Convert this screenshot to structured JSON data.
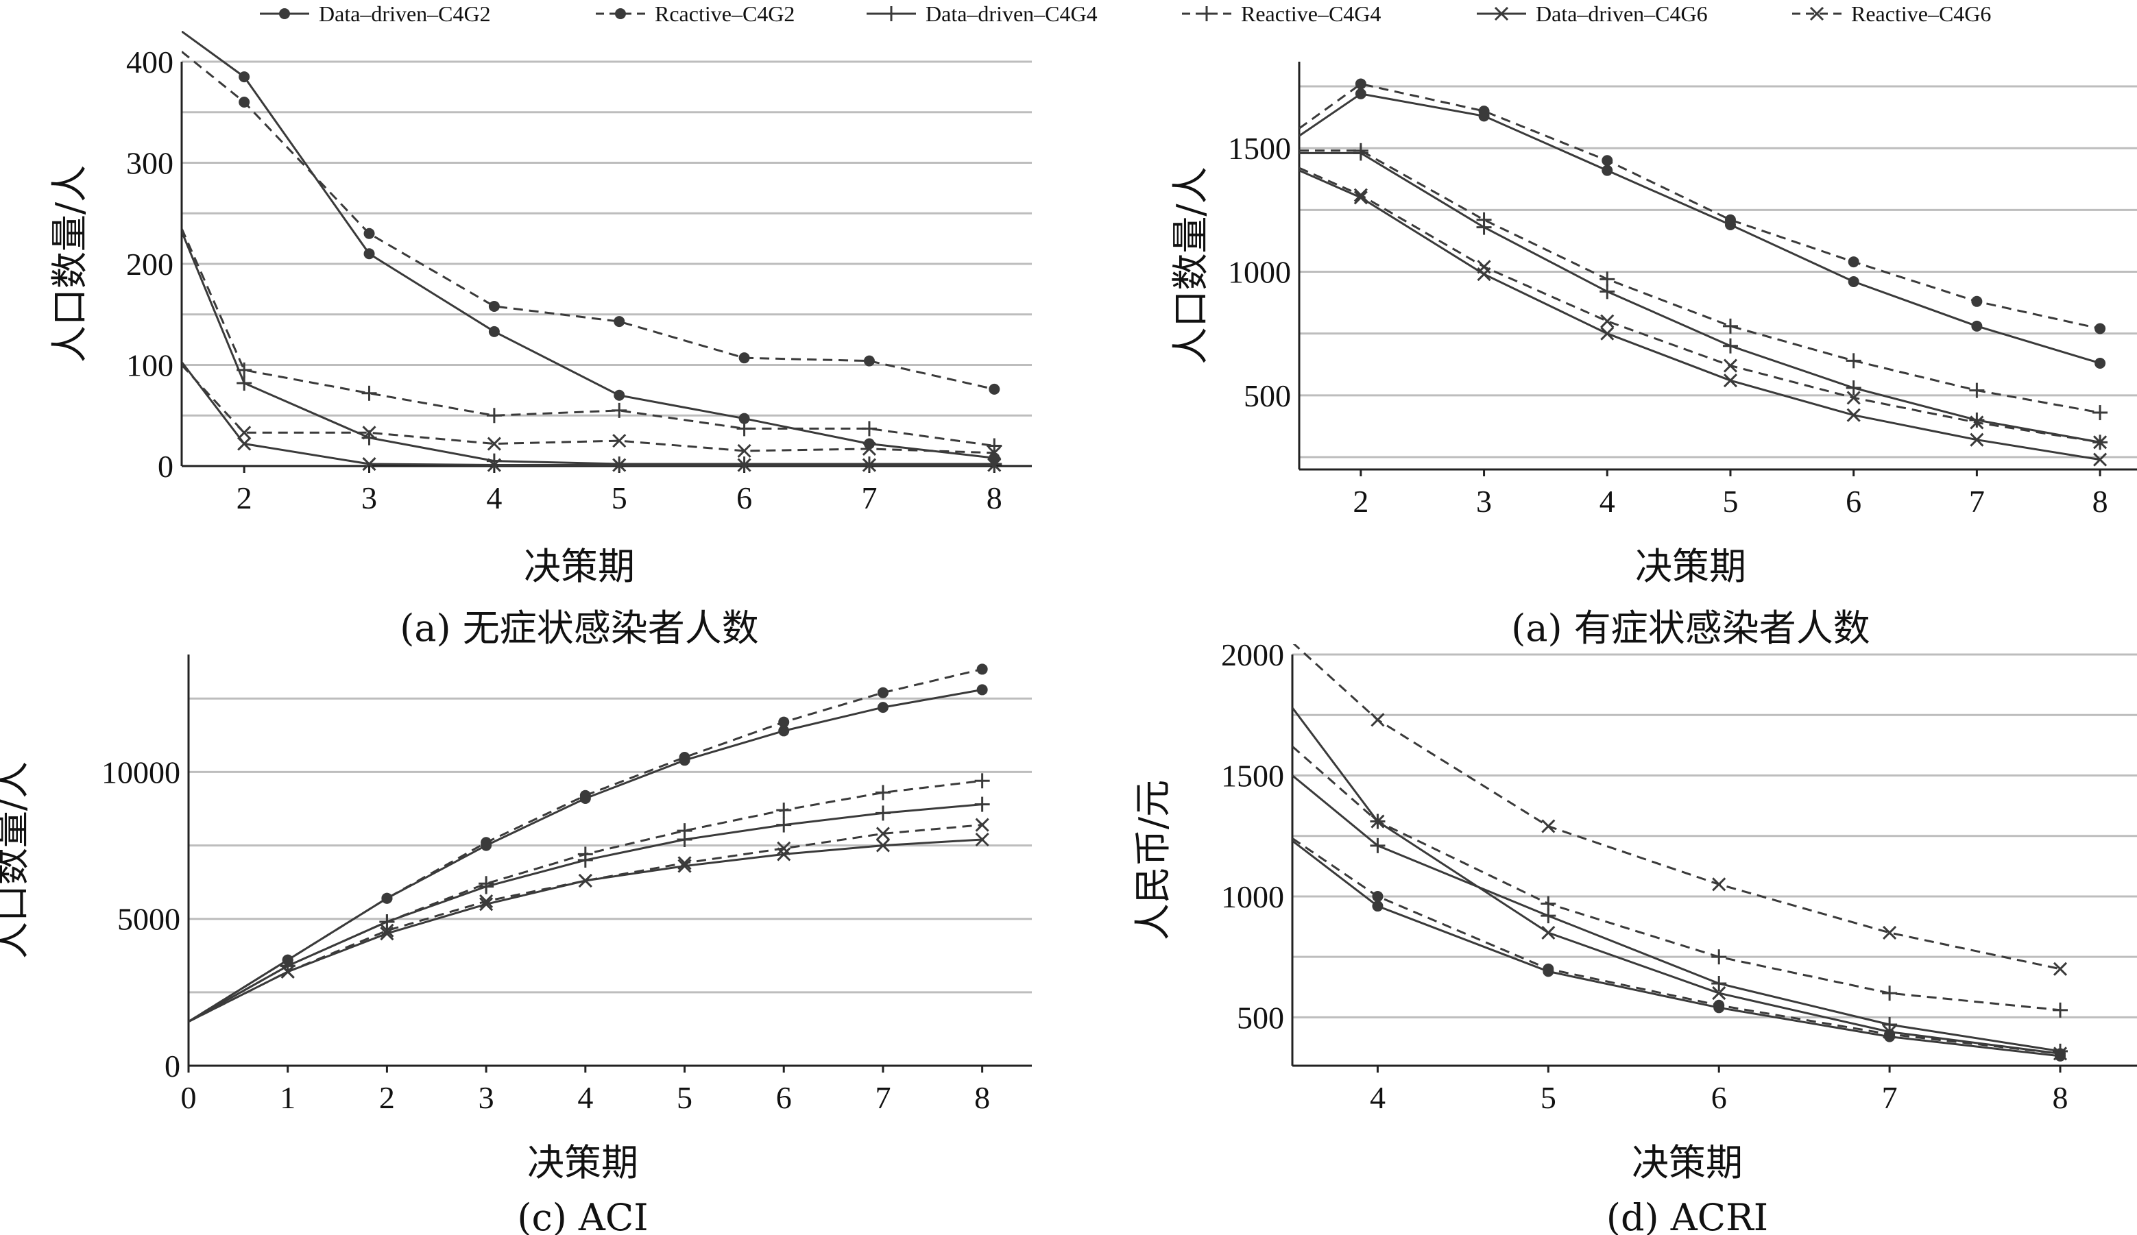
{
  "legend": [
    {
      "label": "Data–driven–C4G2",
      "marker": "circle",
      "dashed": false
    },
    {
      "label": "Rcactive–C4G2",
      "marker": "circle",
      "dashed": true
    },
    {
      "label": "Data–driven–C4G4",
      "marker": "plus",
      "dashed": false
    },
    {
      "label": "Reactive–C4G4",
      "marker": "plus",
      "dashed": true
    },
    {
      "label": "Data–driven–C4G6",
      "marker": "cross",
      "dashed": false
    },
    {
      "label": "Reactive–C4G6",
      "marker": "cross",
      "dashed": true
    }
  ],
  "chart_data": [
    {
      "type": "line",
      "caption": "(a) 无症状感染者人数",
      "xlabel": "决策期",
      "ylabel": "人口数量/人",
      "xlim": [
        1.5,
        8.3
      ],
      "ylim": [
        0,
        400
      ],
      "xticks": [
        2,
        3,
        4,
        5,
        6,
        7,
        8
      ],
      "yticks": [
        0,
        100,
        200,
        300,
        400
      ],
      "grid": "horizontal",
      "series": [
        {
          "name": "Data–driven–C4G2",
          "x": [
            1.5,
            2,
            3,
            4,
            5,
            6,
            7,
            8
          ],
          "y": [
            430,
            385,
            210,
            133,
            70,
            47,
            22,
            8
          ]
        },
        {
          "name": "Rcactive–C4G2",
          "x": [
            1.5,
            2,
            3,
            4,
            5,
            6,
            7,
            8
          ],
          "y": [
            410,
            360,
            230,
            158,
            143,
            107,
            104,
            76
          ]
        },
        {
          "name": "Data–driven–C4G4",
          "x": [
            1.5,
            2,
            3,
            4,
            5,
            6,
            7,
            8
          ],
          "y": [
            232,
            82,
            28,
            5,
            2,
            2,
            2,
            2
          ]
        },
        {
          "name": "Reactive–C4G4",
          "x": [
            1.5,
            2,
            3,
            4,
            5,
            6,
            7,
            8
          ],
          "y": [
            235,
            95,
            72,
            50,
            55,
            37,
            37,
            20
          ]
        },
        {
          "name": "Data–driven–C4G6",
          "x": [
            1.5,
            2,
            3,
            4,
            5,
            6,
            7,
            8
          ],
          "y": [
            103,
            22,
            2,
            1,
            1,
            1,
            1,
            1
          ]
        },
        {
          "name": "Reactive–C4G6",
          "x": [
            1.5,
            2,
            3,
            4,
            5,
            6,
            7,
            8
          ],
          "y": [
            100,
            33,
            33,
            22,
            25,
            15,
            17,
            13
          ]
        }
      ]
    },
    {
      "type": "line",
      "caption": "(a) 有症状感染者人数",
      "xlabel": "决策期",
      "ylabel": "人口数量/人",
      "xlim": [
        1.5,
        8.3
      ],
      "ylim": [
        200,
        1850
      ],
      "xticks": [
        2,
        3,
        4,
        5,
        6,
        7,
        8
      ],
      "yticks": [
        500,
        1000,
        1500
      ],
      "grid": "horizontal",
      "series": [
        {
          "name": "Data–driven–C4G2",
          "x": [
            1.5,
            2,
            3,
            4,
            5,
            6,
            7,
            8
          ],
          "y": [
            1550,
            1720,
            1630,
            1410,
            1190,
            960,
            780,
            630
          ]
        },
        {
          "name": "Rcactive–C4G2",
          "x": [
            1.5,
            2,
            3,
            4,
            5,
            6,
            7,
            8
          ],
          "y": [
            1580,
            1760,
            1650,
            1450,
            1210,
            1040,
            880,
            770
          ]
        },
        {
          "name": "Data–driven–C4G4",
          "x": [
            1.5,
            2,
            3,
            4,
            5,
            6,
            7,
            8
          ],
          "y": [
            1480,
            1480,
            1180,
            920,
            700,
            530,
            400,
            310
          ]
        },
        {
          "name": "Reactive–C4G4",
          "x": [
            1.5,
            2,
            3,
            4,
            5,
            6,
            7,
            8
          ],
          "y": [
            1490,
            1490,
            1210,
            970,
            780,
            640,
            520,
            430
          ]
        },
        {
          "name": "Data–driven–C4G6",
          "x": [
            1.5,
            2,
            3,
            4,
            5,
            6,
            7,
            8
          ],
          "y": [
            1410,
            1300,
            990,
            750,
            560,
            420,
            320,
            240
          ]
        },
        {
          "name": "Reactive–C4G6",
          "x": [
            1.5,
            2,
            3,
            4,
            5,
            6,
            7,
            8
          ],
          "y": [
            1420,
            1310,
            1020,
            800,
            620,
            490,
            390,
            310
          ]
        }
      ]
    },
    {
      "type": "line",
      "caption": "(c) ACI",
      "xlabel": "决策期",
      "ylabel": "人口数量/人",
      "xlim": [
        0,
        8.5
      ],
      "ylim": [
        0,
        14000
      ],
      "xticks": [
        0,
        1,
        2,
        3,
        4,
        5,
        6,
        7,
        8
      ],
      "yticks": [
        0,
        5000,
        10000
      ],
      "grid": "horizontal",
      "series": [
        {
          "name": "Data–driven–C4G2",
          "x": [
            0,
            1,
            2,
            3,
            4,
            5,
            6,
            7,
            8
          ],
          "y": [
            1500,
            3600,
            5700,
            7500,
            9100,
            10400,
            11400,
            12200,
            12800
          ]
        },
        {
          "name": "Rcactive–C4G2",
          "x": [
            0,
            1,
            2,
            3,
            4,
            5,
            6,
            7,
            8
          ],
          "y": [
            1500,
            3600,
            5700,
            7600,
            9200,
            10500,
            11700,
            12700,
            13500
          ]
        },
        {
          "name": "Data–driven–C4G4",
          "x": [
            0,
            1,
            2,
            3,
            4,
            5,
            6,
            7,
            8
          ],
          "y": [
            1500,
            3400,
            4900,
            6100,
            7000,
            7700,
            8200,
            8600,
            8900
          ]
        },
        {
          "name": "Reactive–C4G4",
          "x": [
            0,
            1,
            2,
            3,
            4,
            5,
            6,
            7,
            8
          ],
          "y": [
            1500,
            3400,
            4900,
            6200,
            7200,
            8000,
            8700,
            9300,
            9700
          ]
        },
        {
          "name": "Data–driven–C4G6",
          "x": [
            0,
            1,
            2,
            3,
            4,
            5,
            6,
            7,
            8
          ],
          "y": [
            1500,
            3200,
            4500,
            5500,
            6300,
            6800,
            7200,
            7500,
            7700
          ]
        },
        {
          "name": "Reactive–C4G6",
          "x": [
            0,
            1,
            2,
            3,
            4,
            5,
            6,
            7,
            8
          ],
          "y": [
            1500,
            3200,
            4600,
            5600,
            6300,
            6900,
            7400,
            7900,
            8200
          ]
        }
      ]
    },
    {
      "type": "line",
      "caption": "(d) ACRI",
      "xlabel": "决策期",
      "ylabel": "人民币/元",
      "xlim": [
        3.5,
        8.45
      ],
      "ylim": [
        300,
        2000
      ],
      "xticks": [
        4,
        5,
        6,
        7,
        8
      ],
      "yticks": [
        500,
        1000,
        1500,
        2000
      ],
      "grid": "horizontal",
      "series": [
        {
          "name": "Data–driven–C4G2",
          "x": [
            3.5,
            4,
            5,
            6,
            7,
            8
          ],
          "y": [
            1230,
            960,
            690,
            540,
            420,
            340
          ]
        },
        {
          "name": "Rcactive–C4G2",
          "x": [
            3.5,
            4,
            5,
            6,
            7,
            8
          ],
          "y": [
            1240,
            1000,
            700,
            550,
            430,
            350
          ]
        },
        {
          "name": "Data–driven–C4G4",
          "x": [
            3.5,
            4,
            5,
            6,
            7,
            8
          ],
          "y": [
            1500,
            1210,
            920,
            640,
            470,
            360
          ]
        },
        {
          "name": "Reactive–C4G4",
          "x": [
            3.5,
            4,
            5,
            6,
            7,
            8
          ],
          "y": [
            1620,
            1310,
            970,
            750,
            600,
            530
          ]
        },
        {
          "name": "Data–driven–C4G6",
          "x": [
            3.5,
            4,
            5,
            6,
            7,
            8
          ],
          "y": [
            1780,
            1310,
            850,
            600,
            440,
            350
          ]
        },
        {
          "name": "Reactive–C4G6",
          "x": [
            3.5,
            4,
            5,
            6,
            7,
            8
          ],
          "y": [
            2050,
            1730,
            1290,
            1050,
            850,
            700
          ]
        }
      ]
    }
  ]
}
